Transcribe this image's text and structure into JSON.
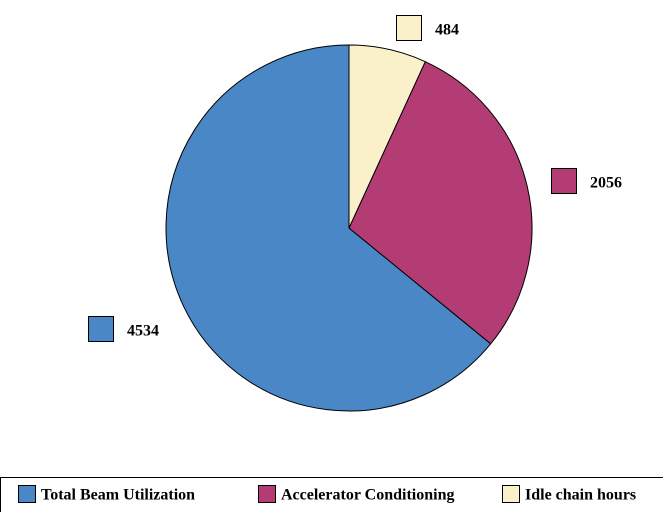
{
  "chart_data": {
    "type": "pie",
    "categories": [
      "Total Beam Utilization",
      "Accelerator Conditioning",
      "Idle chain hours"
    ],
    "values": [
      4534,
      2056,
      484
    ],
    "colors": [
      "#4a87c6",
      "#b43c74",
      "#faf1cb"
    ]
  }
}
